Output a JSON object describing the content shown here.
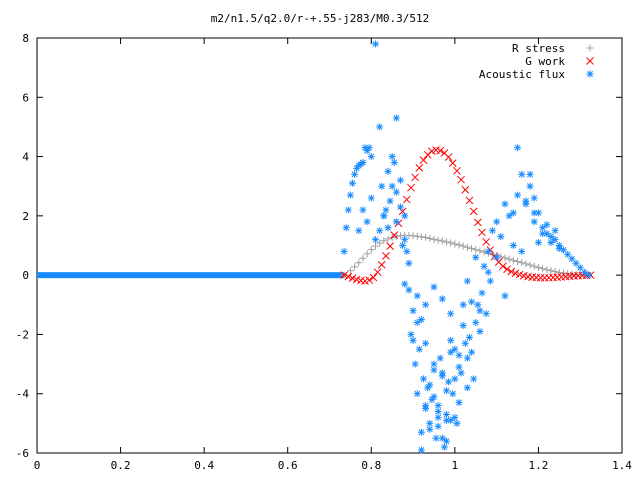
{
  "chart_data": {
    "type": "scatter",
    "title": "m2/n1.5/q2.0/r-+.55-j283/M0.3/512",
    "xlabel": "",
    "ylabel": "",
    "xlim": [
      0,
      1.4
    ],
    "ylim": [
      -6,
      8
    ],
    "x_ticks": [
      "0",
      "0.2",
      "0.4",
      "0.6",
      "0.8",
      "1",
      "1.2",
      "1.4"
    ],
    "y_ticks": [
      "8",
      "6",
      "4",
      "2",
      "0",
      "-2",
      "-4",
      "-6"
    ],
    "x_tick_values": [
      0,
      0.2,
      0.4,
      0.6,
      0.8,
      1.0,
      1.2,
      1.4
    ],
    "y_tick_values": [
      8,
      6,
      4,
      2,
      0,
      -2,
      -4,
      -6
    ],
    "grid": false,
    "legend_position": "top-right",
    "series": [
      {
        "name": "R stress",
        "marker": "plus",
        "color": "#a0a0a0",
        "x": [
          0.735,
          0.75,
          0.76,
          0.77,
          0.78,
          0.79,
          0.8,
          0.81,
          0.82,
          0.83,
          0.84,
          0.85,
          0.86,
          0.87,
          0.88,
          0.89,
          0.9,
          0.91,
          0.92,
          0.93,
          0.94,
          0.95,
          0.96,
          0.97,
          0.98,
          0.99,
          1.0,
          1.01,
          1.02,
          1.03,
          1.04,
          1.05,
          1.06,
          1.07,
          1.08,
          1.09,
          1.1,
          1.11,
          1.12,
          1.13,
          1.14,
          1.15,
          1.16,
          1.17,
          1.18,
          1.19,
          1.2,
          1.21,
          1.22,
          1.23,
          1.24,
          1.25,
          1.26,
          1.27,
          1.28,
          1.29,
          1.3,
          1.31,
          1.32
        ],
        "y": [
          0.0,
          0.15,
          0.28,
          0.42,
          0.57,
          0.72,
          0.86,
          0.98,
          1.08,
          1.16,
          1.22,
          1.27,
          1.31,
          1.33,
          1.34,
          1.34,
          1.33,
          1.31,
          1.29,
          1.27,
          1.24,
          1.21,
          1.18,
          1.15,
          1.12,
          1.09,
          1.05,
          1.02,
          0.98,
          0.94,
          0.9,
          0.86,
          0.82,
          0.78,
          0.74,
          0.7,
          0.66,
          0.62,
          0.58,
          0.54,
          0.5,
          0.46,
          0.42,
          0.38,
          0.34,
          0.3,
          0.26,
          0.22,
          0.18,
          0.15,
          0.12,
          0.09,
          0.07,
          0.05,
          0.03,
          0.02,
          0.01,
          0.0,
          0.0
        ]
      },
      {
        "name": "G work",
        "marker": "cross",
        "color": "#ff0000",
        "x": [
          0.735,
          0.745,
          0.755,
          0.765,
          0.775,
          0.785,
          0.795,
          0.805,
          0.815,
          0.825,
          0.835,
          0.845,
          0.855,
          0.865,
          0.875,
          0.885,
          0.895,
          0.905,
          0.915,
          0.925,
          0.935,
          0.945,
          0.955,
          0.965,
          0.975,
          0.985,
          0.995,
          1.005,
          1.015,
          1.025,
          1.035,
          1.045,
          1.055,
          1.065,
          1.075,
          1.085,
          1.095,
          1.105,
          1.115,
          1.125,
          1.135,
          1.145,
          1.155,
          1.165,
          1.175,
          1.185,
          1.195,
          1.205,
          1.215,
          1.225,
          1.235,
          1.245,
          1.255,
          1.265,
          1.275,
          1.285,
          1.295,
          1.305,
          1.315,
          1.325
        ],
        "y": [
          0.0,
          -0.05,
          -0.1,
          -0.15,
          -0.18,
          -0.2,
          -0.17,
          -0.08,
          0.1,
          0.35,
          0.65,
          0.98,
          1.35,
          1.75,
          2.15,
          2.55,
          2.95,
          3.3,
          3.62,
          3.88,
          4.06,
          4.18,
          4.22,
          4.2,
          4.12,
          3.98,
          3.78,
          3.52,
          3.22,
          2.88,
          2.52,
          2.15,
          1.78,
          1.44,
          1.12,
          0.85,
          0.62,
          0.44,
          0.3,
          0.2,
          0.12,
          0.06,
          0.02,
          -0.02,
          -0.05,
          -0.07,
          -0.08,
          -0.09,
          -0.09,
          -0.09,
          -0.08,
          -0.07,
          -0.06,
          -0.05,
          -0.04,
          -0.03,
          -0.02,
          -0.01,
          -0.01,
          0.0
        ]
      },
      {
        "name": "Acoustic flux",
        "marker": "star",
        "color": "#1a8cff",
        "x": [
          0.735,
          0.74,
          0.745,
          0.75,
          0.755,
          0.76,
          0.765,
          0.77,
          0.775,
          0.78,
          0.785,
          0.79,
          0.795,
          0.8,
          0.81,
          0.82,
          0.825,
          0.83,
          0.835,
          0.84,
          0.845,
          0.85,
          0.855,
          0.86,
          0.87,
          0.875,
          0.88,
          0.885,
          0.89,
          0.895,
          0.9,
          0.905,
          0.91,
          0.915,
          0.92,
          0.925,
          0.93,
          0.935,
          0.94,
          0.945,
          0.95,
          0.955,
          0.96,
          0.965,
          0.97,
          0.975,
          0.98,
          0.985,
          0.99,
          0.995,
          1.0,
          1.005,
          1.01,
          1.015,
          1.02,
          1.025,
          1.03,
          1.035,
          1.04,
          1.045,
          1.05,
          1.055,
          1.06,
          1.065,
          1.07,
          1.075,
          1.08,
          1.085,
          1.09,
          1.1,
          1.11,
          1.12,
          1.13,
          1.14,
          1.15,
          1.16,
          1.17,
          1.18,
          1.19,
          1.2,
          1.21,
          1.22,
          1.23,
          1.24,
          1.25,
          1.26,
          1.27,
          1.28,
          1.29,
          1.3,
          1.31,
          1.32,
          0.82,
          0.83,
          0.85,
          0.86,
          0.87,
          0.88,
          0.89,
          0.91,
          0.92,
          0.93,
          0.95,
          0.96,
          0.97,
          0.98,
          0.99,
          1.01,
          1.02,
          1.03,
          1.04,
          1.06,
          1.08,
          1.1,
          1.12,
          1.14,
          1.16,
          1.18,
          1.19,
          1.21,
          1.22,
          0.93,
          0.94,
          0.95,
          0.96,
          0.97,
          0.98,
          0.99,
          1.0,
          1.01,
          0.92,
          0.94,
          0.96,
          0.98,
          1.0,
          0.9,
          0.91,
          0.93,
          0.95,
          0.97,
          0.99,
          1.03,
          1.05,
          0.88,
          0.86,
          0.84,
          0.81,
          0.8,
          0.79,
          0.78,
          0.77,
          1.15,
          1.17,
          1.19,
          1.2,
          1.23,
          1.24,
          1.25
        ],
        "y": [
          0.8,
          1.6,
          2.2,
          2.7,
          3.1,
          3.4,
          3.6,
          3.7,
          3.75,
          3.8,
          4.3,
          4.2,
          4.3,
          4.0,
          7.8,
          5.0,
          3.0,
          2.0,
          2.2,
          3.5,
          2.5,
          4.0,
          3.8,
          5.3,
          2.3,
          1.0,
          -0.3,
          0.8,
          -0.5,
          -2.0,
          -1.2,
          -3.0,
          -4.0,
          -2.5,
          -5.3,
          -3.5,
          -4.5,
          -3.8,
          -5.0,
          -4.2,
          -3.0,
          -5.5,
          -4.6,
          -2.8,
          -3.3,
          -5.8,
          -4.9,
          -3.6,
          -2.6,
          -4.0,
          -2.5,
          -5.0,
          -4.3,
          -3.3,
          -1.0,
          -2.3,
          -3.8,
          -2.1,
          -2.6,
          -3.5,
          -1.6,
          -1.0,
          -1.9,
          -0.6,
          0.3,
          -1.3,
          0.8,
          -0.2,
          1.5,
          0.6,
          1.3,
          -0.7,
          2.0,
          1.0,
          4.3,
          0.8,
          2.5,
          3.4,
          1.8,
          1.1,
          1.4,
          1.7,
          1.3,
          1.2,
          1.0,
          0.85,
          0.7,
          0.55,
          0.4,
          0.25,
          0.1,
          0.0,
          1.5,
          2.0,
          3.0,
          2.8,
          3.2,
          1.2,
          0.4,
          -0.7,
          -1.5,
          -2.3,
          -3.2,
          -4.8,
          -5.5,
          -3.9,
          -2.2,
          -3.1,
          -1.7,
          -2.8,
          -0.9,
          -1.2,
          0.1,
          1.8,
          2.4,
          2.1,
          3.4,
          3.0,
          2.1,
          1.6,
          1.4,
          -4.4,
          -3.7,
          -4.1,
          -5.1,
          -3.4,
          -4.7,
          -4.9,
          -3.5,
          -2.7,
          -5.9,
          -5.2,
          -4.4,
          -5.6,
          -4.8,
          -2.2,
          -1.6,
          -1.0,
          -0.4,
          -0.8,
          -1.3,
          -0.2,
          0.6,
          2.0,
          1.8,
          1.6,
          1.2,
          2.6,
          1.8,
          2.2,
          1.5,
          2.7,
          2.4,
          2.6,
          2.1,
          1.1,
          1.5,
          0.9
        ]
      }
    ],
    "baseline_segment": {
      "name": "Acoustic flux",
      "x_start": 0,
      "x_end": 0.735,
      "y": 0
    }
  }
}
